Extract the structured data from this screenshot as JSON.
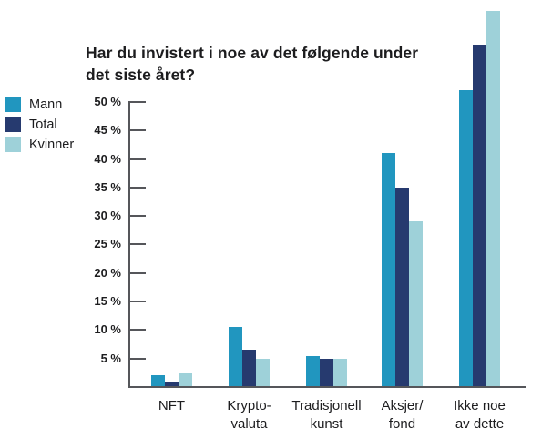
{
  "page": {
    "background": "#ffffff"
  },
  "chart_data": {
    "type": "bar",
    "title": "Har du invistert i noe av det følgende under det siste året?",
    "title_lines": [
      "Har du invistert i noe av det følgende under",
      "det siste året?"
    ],
    "categories": [
      "NFT",
      "Krypto-valuta",
      "Tradisjonell kunst",
      "Aksjer/fond",
      "Ikke noe av dette"
    ],
    "category_label_lines": [
      [
        "NFT"
      ],
      [
        "Krypto-",
        "valuta"
      ],
      [
        "Tradisjonell",
        "kunst"
      ],
      [
        "Aksjer/",
        "fond"
      ],
      [
        "Ikke noe",
        "av dette"
      ]
    ],
    "series": [
      {
        "name": "Mann",
        "color": "#2196BF",
        "values": [
          2,
          10.5,
          5.5,
          41,
          52
        ]
      },
      {
        "name": "Total",
        "color": "#263A6F",
        "values": [
          1,
          6.5,
          5,
          35,
          60
        ]
      },
      {
        "name": "Kvinner",
        "color": "#9ED1D9",
        "values": [
          2.5,
          5,
          5,
          29,
          66
        ]
      }
    ],
    "xlabel": "",
    "ylabel": "",
    "yticks": [
      5,
      10,
      15,
      20,
      25,
      30,
      35,
      40,
      45,
      50
    ],
    "ytick_labels": [
      "5 %",
      "10 %",
      "15 %",
      "20 %",
      "25 %",
      "30 %",
      "35 %",
      "40 %",
      "45 %",
      "50 %"
    ],
    "ylim_axis": [
      0,
      50
    ],
    "grid": false,
    "legend_position": "upper-left",
    "axis_color": "#55565A",
    "text_color": "#1D1D1F"
  }
}
